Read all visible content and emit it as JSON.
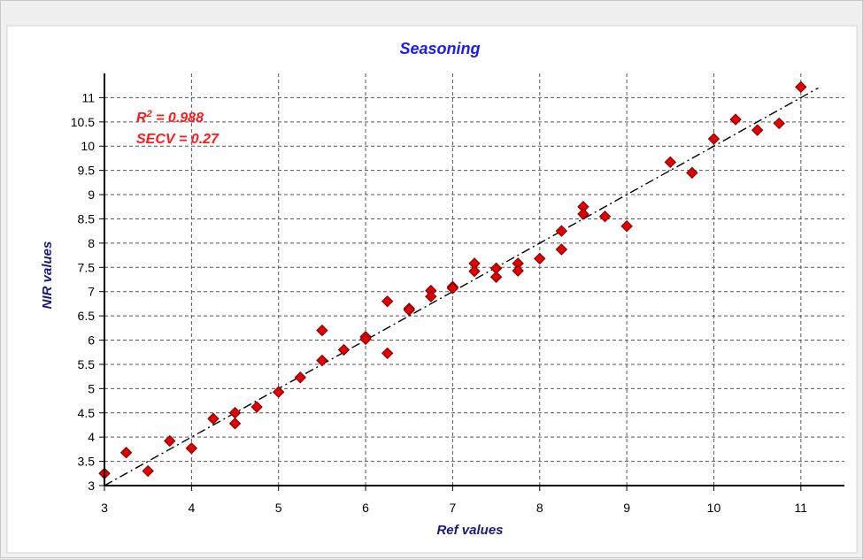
{
  "chart_data": {
    "type": "scatter",
    "title": "Seasoning",
    "xlabel": "Ref values",
    "ylabel": "NIR values",
    "xlim": [
      3,
      11.5
    ],
    "ylim": [
      3,
      11.5
    ],
    "x_ticks": [
      "3",
      "4",
      "5",
      "6",
      "7",
      "8",
      "9",
      "10",
      "11"
    ],
    "y_ticks": [
      "3",
      "3.5",
      "4",
      "4.5",
      "5",
      "5.5",
      "6",
      "6.5",
      "7",
      "7.5",
      "8",
      "8.5",
      "9",
      "9.5",
      "10",
      "10.5",
      "11"
    ],
    "grid": true,
    "annotations": {
      "r2_prefix": "R",
      "r2_exponent": "2",
      "r2_value": " = 0.988",
      "secv": "SECV = 0.27"
    },
    "series": [
      {
        "color": "#e00000",
        "marker": "diamond",
        "points": [
          [
            3.0,
            3.25
          ],
          [
            3.25,
            3.68
          ],
          [
            3.5,
            3.3
          ],
          [
            3.75,
            3.92
          ],
          [
            4.0,
            3.77
          ],
          [
            4.25,
            4.38
          ],
          [
            4.5,
            4.5
          ],
          [
            4.5,
            4.28
          ],
          [
            4.75,
            4.62
          ],
          [
            5.0,
            4.93
          ],
          [
            5.25,
            5.23
          ],
          [
            5.5,
            6.2
          ],
          [
            5.5,
            5.58
          ],
          [
            5.75,
            5.8
          ],
          [
            6.0,
            6.07
          ],
          [
            6.0,
            6.02
          ],
          [
            6.25,
            6.8
          ],
          [
            6.25,
            5.73
          ],
          [
            6.5,
            6.65
          ],
          [
            6.5,
            6.62
          ],
          [
            6.75,
            7.02
          ],
          [
            6.75,
            6.9
          ],
          [
            7.0,
            7.1
          ],
          [
            7.0,
            7.07
          ],
          [
            7.25,
            7.58
          ],
          [
            7.25,
            7.42
          ],
          [
            7.5,
            7.48
          ],
          [
            7.5,
            7.3
          ],
          [
            7.75,
            7.58
          ],
          [
            7.75,
            7.43
          ],
          [
            8.0,
            7.68
          ],
          [
            8.25,
            8.25
          ],
          [
            8.25,
            7.87
          ],
          [
            8.5,
            8.75
          ],
          [
            8.5,
            8.6
          ],
          [
            8.75,
            8.55
          ],
          [
            9.0,
            8.35
          ],
          [
            9.5,
            9.67
          ],
          [
            9.75,
            9.45
          ],
          [
            10.0,
            10.15
          ],
          [
            10.25,
            10.55
          ],
          [
            10.5,
            10.33
          ],
          [
            10.75,
            10.47
          ],
          [
            11.0,
            11.22
          ]
        ]
      }
    ],
    "trendline": {
      "style": "dashed",
      "color": "#000000",
      "from": [
        3.0,
        3.0
      ],
      "to": [
        11.2,
        11.2
      ]
    }
  }
}
